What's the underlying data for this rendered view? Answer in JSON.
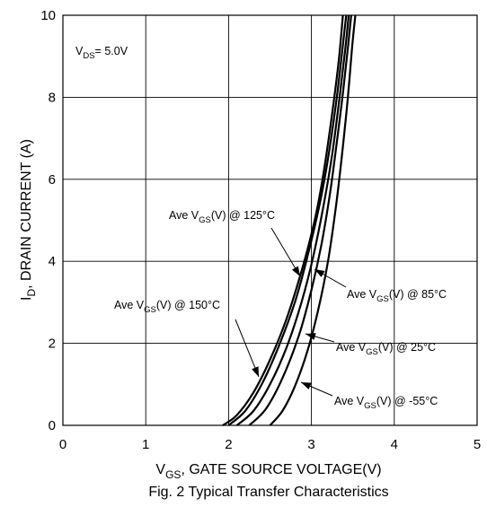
{
  "chart_data": {
    "type": "line",
    "title": "Fig. 2 Typical Transfer Characteristics",
    "xlabel": {
      "main": "V",
      "sub": "GS",
      "rest": ", GATE SOURCE VOLTAGE(V)"
    },
    "ylabel": {
      "main": "I",
      "sub": "D",
      "rest": ", DRAIN CURRENT (A)"
    },
    "xlim": [
      0,
      5
    ],
    "ylim": [
      0,
      10
    ],
    "xticks": [
      "0",
      "1",
      "2",
      "3",
      "4",
      "5"
    ],
    "yticks": [
      "0",
      "2",
      "4",
      "6",
      "8",
      "10"
    ],
    "grid": true,
    "condition": {
      "main": "V",
      "sub": "DS",
      "rest": "= 5.0V"
    },
    "series": [
      {
        "name": "Ave VGS(V) @ 150°C",
        "label": {
          "pre": "Ave V",
          "sub": "GS",
          "post": "(V) @ 150°C"
        },
        "points": [
          [
            1.93,
            0
          ],
          [
            2.1,
            0.25
          ],
          [
            2.3,
            0.8
          ],
          [
            2.5,
            1.6
          ],
          [
            2.7,
            2.6
          ],
          [
            2.9,
            3.9
          ],
          [
            3.05,
            5.1
          ],
          [
            3.15,
            6.2
          ],
          [
            3.25,
            7.6
          ],
          [
            3.33,
            8.9
          ],
          [
            3.38,
            10
          ]
        ]
      },
      {
        "name": "Ave VGS(V) @ 125°C",
        "label": {
          "pre": "Ave V",
          "sub": "GS",
          "post": "(V) @ 125°C"
        },
        "points": [
          [
            2.0,
            0
          ],
          [
            2.2,
            0.35
          ],
          [
            2.4,
            1.0
          ],
          [
            2.6,
            1.9
          ],
          [
            2.8,
            3.0
          ],
          [
            2.95,
            4.1
          ],
          [
            3.1,
            5.4
          ],
          [
            3.2,
            6.5
          ],
          [
            3.3,
            7.9
          ],
          [
            3.37,
            9.1
          ],
          [
            3.42,
            10
          ]
        ]
      },
      {
        "name": "Ave VGS(V) @ 85°C",
        "label": {
          "pre": "Ave V",
          "sub": "GS",
          "post": "(V) @ 85°C"
        },
        "points": [
          [
            2.1,
            0
          ],
          [
            2.3,
            0.35
          ],
          [
            2.5,
            1.0
          ],
          [
            2.7,
            1.9
          ],
          [
            2.88,
            3.0
          ],
          [
            3.02,
            4.1
          ],
          [
            3.15,
            5.4
          ],
          [
            3.25,
            6.6
          ],
          [
            3.34,
            8.0
          ],
          [
            3.41,
            9.2
          ],
          [
            3.45,
            10
          ]
        ]
      },
      {
        "name": "Ave VGS(V) @ 25°C",
        "label": {
          "pre": "Ave V",
          "sub": "GS",
          "post": "(V) @ 25°C"
        },
        "points": [
          [
            2.25,
            0
          ],
          [
            2.45,
            0.4
          ],
          [
            2.65,
            1.15
          ],
          [
            2.85,
            2.2
          ],
          [
            3.0,
            3.3
          ],
          [
            3.12,
            4.4
          ],
          [
            3.22,
            5.6
          ],
          [
            3.3,
            6.8
          ],
          [
            3.38,
            8.1
          ],
          [
            3.44,
            9.2
          ],
          [
            3.48,
            10
          ]
        ]
      },
      {
        "name": "Ave VGS(V) @ -55°C",
        "label": {
          "pre": "Ave V",
          "sub": "GS",
          "post": "(V) @ -55°C"
        },
        "points": [
          [
            2.5,
            0
          ],
          [
            2.65,
            0.35
          ],
          [
            2.8,
            0.95
          ],
          [
            2.95,
            1.8
          ],
          [
            3.08,
            2.8
          ],
          [
            3.2,
            4.0
          ],
          [
            3.3,
            5.4
          ],
          [
            3.38,
            6.8
          ],
          [
            3.44,
            8.0
          ],
          [
            3.49,
            9.2
          ],
          [
            3.53,
            10
          ]
        ]
      }
    ]
  }
}
